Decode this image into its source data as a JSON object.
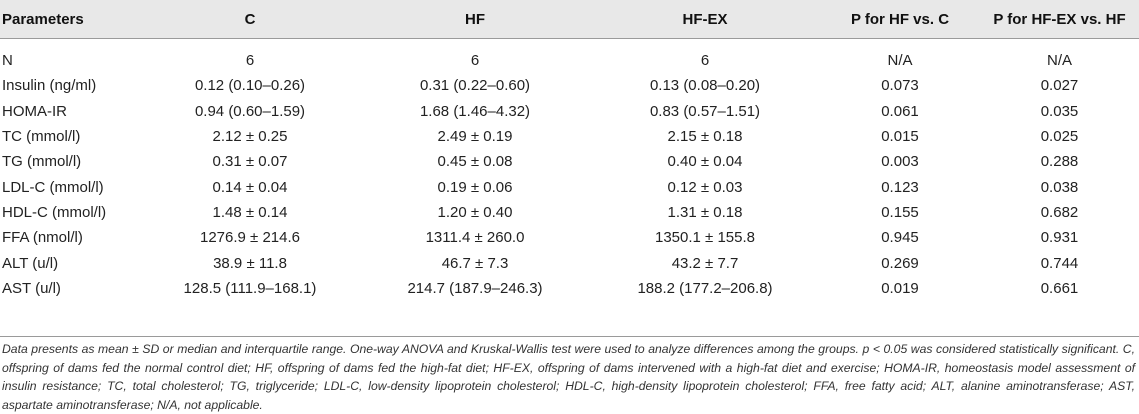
{
  "table": {
    "headers": [
      "Parameters",
      "C",
      "HF",
      "HF-EX",
      "P for HF vs. C",
      "P for HF-EX vs. HF"
    ],
    "rows": [
      [
        "N",
        "6",
        "6",
        "6",
        "N/A",
        "N/A"
      ],
      [
        "Insulin (ng/ml)",
        "0.12 (0.10–0.26)",
        "0.31 (0.22–0.60)",
        "0.13 (0.08–0.20)",
        "0.073",
        "0.027"
      ],
      [
        "HOMA-IR",
        "0.94 (0.60–1.59)",
        "1.68 (1.46–4.32)",
        "0.83 (0.57–1.51)",
        "0.061",
        "0.035"
      ],
      [
        "TC (mmol/l)",
        "2.12 ± 0.25",
        "2.49 ± 0.19",
        "2.15 ± 0.18",
        "0.015",
        "0.025"
      ],
      [
        "TG (mmol/l)",
        "0.31 ± 0.07",
        "0.45 ± 0.08",
        "0.40 ± 0.04",
        "0.003",
        "0.288"
      ],
      [
        "LDL-C (mmol/l)",
        "0.14 ± 0.04",
        "0.19 ± 0.06",
        "0.12 ± 0.03",
        "0.123",
        "0.038"
      ],
      [
        "HDL-C (mmol/l)",
        "1.48 ± 0.14",
        "1.20 ± 0.40",
        "1.31 ± 0.18",
        "0.155",
        "0.682"
      ],
      [
        "FFA (nmol/l)",
        "1276.9 ± 214.6",
        "1311.4 ± 260.0",
        "1350.1 ± 155.8",
        "0.945",
        "0.931"
      ],
      [
        "ALT (u/l)",
        "38.9 ± 11.8",
        "46.7 ± 7.3",
        "43.2 ± 7.7",
        "0.269",
        "0.744"
      ],
      [
        "AST (u/l)",
        "128.5 (111.9–168.1)",
        "214.7 (187.9–246.3)",
        "188.2 (177.2–206.8)",
        "0.019",
        "0.661"
      ]
    ]
  },
  "footnote": "Data presents as mean ± SD or median and interquartile range. One-way ANOVA and Kruskal-Wallis test were used to analyze differences among the groups. p < 0.05 was considered statistically significant. C, offspring of dams fed the normal control diet; HF, offspring of dams fed the high-fat diet; HF-EX, offspring of dams intervened with a high-fat diet and exercise; HOMA-IR, homeostasis model assessment of insulin resistance; TC, total cholesterol; TG, triglyceride; LDL-C, low-density lipoprotein cholesterol; HDL-C, high-density lipoprotein cholesterol; FFA, free fatty acid; ALT, alanine aminotransferase; AST, aspartate aminotransferase; N/A, not applicable."
}
